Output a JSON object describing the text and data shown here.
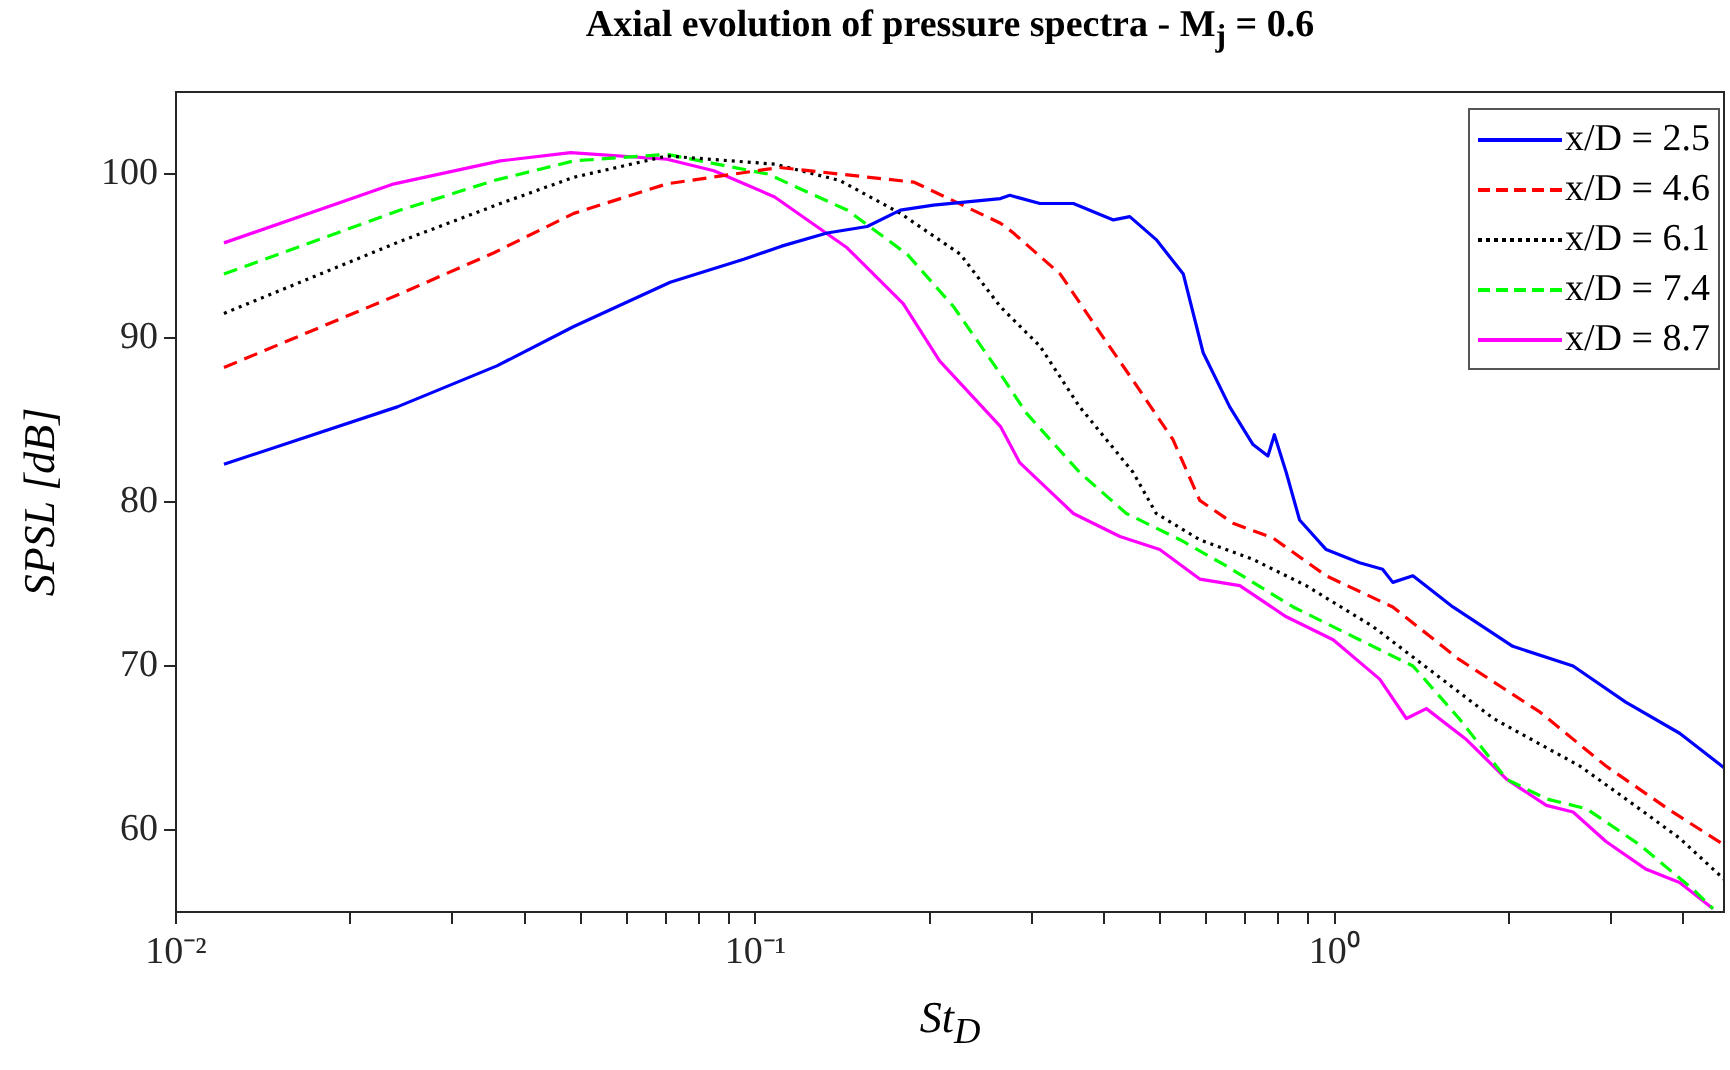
{
  "chart_data": {
    "type": "line",
    "title": "Axial evolution of pressure spectra - M$_{j}$ = 0.6",
    "xlabel": "St$_{D}$",
    "ylabel": "SPSL [dB]",
    "log": "x",
    "grid": false,
    "legend": "top right",
    "marker": "none",
    "xlim": [
      0.01,
      4.7
    ],
    "xticks": [
      {
        "value": 0.01,
        "label": "10⁻²"
      },
      {
        "value": 0.02,
        "label": null
      },
      {
        "value": 0.03,
        "label": null
      },
      {
        "value": 0.04,
        "label": null
      },
      {
        "value": 0.05,
        "label": null
      },
      {
        "value": 0.06,
        "label": null
      },
      {
        "value": 0.07,
        "label": null
      },
      {
        "value": 0.08,
        "label": null
      },
      {
        "value": 0.09,
        "label": null
      },
      {
        "value": 0.1,
        "label": "10⁻¹"
      },
      {
        "value": 0.2,
        "label": null
      },
      {
        "value": 0.3,
        "label": null
      },
      {
        "value": 0.4,
        "label": null
      },
      {
        "value": 0.5,
        "label": null
      },
      {
        "value": 0.6,
        "label": null
      },
      {
        "value": 0.7,
        "label": null
      },
      {
        "value": 0.8,
        "label": null
      },
      {
        "value": 0.9,
        "label": null
      },
      {
        "value": 1,
        "label": "10⁰"
      },
      {
        "value": 2,
        "label": null
      },
      {
        "value": 3,
        "label": null
      },
      {
        "value": 4,
        "label": null
      }
    ],
    "ylim": [
      55,
      105
    ],
    "yticks": [
      60,
      70,
      80,
      90,
      100
    ],
    "series": [
      {
        "name": "x/D = 2.5",
        "color": "#0000ff",
        "line_style": "solid",
        "x": [
          0.0121,
          0.0241,
          0.0358,
          0.0486,
          0.0713,
          0.0955,
          0.111,
          0.133,
          0.156,
          0.178,
          0.203,
          0.265,
          0.275,
          0.31,
          0.354,
          0.415,
          0.443,
          0.492,
          0.548,
          0.593,
          0.659,
          0.723,
          0.767,
          0.787,
          0.825,
          0.87,
          0.967,
          1.104,
          1.21,
          1.26,
          1.365,
          1.6,
          2.03,
          2.58,
          3.18,
          3.94,
          4.7
        ],
        "values": [
          82.3,
          85.8,
          88.3,
          90.7,
          93.4,
          94.8,
          95.6,
          96.4,
          96.8,
          97.8,
          98.1,
          98.5,
          98.7,
          98.2,
          98.2,
          97.2,
          97.4,
          96.0,
          93.9,
          89.1,
          85.8,
          83.5,
          82.8,
          84.1,
          81.8,
          78.9,
          77.1,
          76.3,
          75.9,
          75.1,
          75.5,
          73.6,
          71.2,
          70.0,
          67.8,
          65.9,
          63.8
        ]
      },
      {
        "name": "x/D = 4.6",
        "color": "#ff0000",
        "line_style": "dashed",
        "x": [
          0.0121,
          0.0244,
          0.0354,
          0.0486,
          0.0704,
          0.11,
          0.188,
          0.265,
          0.279,
          0.336,
          0.394,
          0.449,
          0.526,
          0.585,
          0.668,
          0.783,
          0.967,
          1.26,
          1.64,
          2.26,
          2.94,
          3.83,
          4.7
        ],
        "values": [
          88.2,
          92.7,
          95.2,
          97.6,
          99.4,
          100.4,
          99.5,
          97.0,
          96.4,
          93.9,
          90.3,
          87.4,
          83.8,
          80.1,
          78.7,
          77.8,
          75.5,
          73.6,
          70.4,
          67.2,
          63.9,
          61.1,
          59.1
        ]
      },
      {
        "name": "x/D = 6.1",
        "color": "#000000",
        "line_style": "dotted",
        "x": [
          0.0121,
          0.0244,
          0.0363,
          0.0486,
          0.0704,
          0.108,
          0.14,
          0.178,
          0.226,
          0.265,
          0.31,
          0.363,
          0.449,
          0.492,
          0.585,
          0.723,
          0.893,
          1.165,
          1.48,
          1.88,
          2.14,
          2.65,
          3.18,
          3.94,
          4.7
        ],
        "values": [
          91.5,
          95.9,
          98.2,
          99.8,
          101.1,
          100.6,
          99.6,
          97.6,
          95.1,
          91.9,
          89.5,
          85.8,
          81.8,
          79.3,
          77.7,
          76.5,
          74.9,
          72.4,
          69.6,
          66.8,
          65.7,
          63.9,
          61.9,
          59.5,
          57.0
        ]
      },
      {
        "name": "x/D = 7.4",
        "color": "#00ff00",
        "line_style": "dashed",
        "x": [
          0.0121,
          0.0244,
          0.0354,
          0.0486,
          0.0704,
          0.105,
          0.144,
          0.183,
          0.22,
          0.265,
          0.294,
          0.363,
          0.437,
          0.541,
          0.65,
          0.848,
          1.104,
          1.365,
          1.64,
          1.98,
          2.32,
          2.72,
          3.36,
          4.15,
          4.5
        ],
        "values": [
          93.9,
          97.8,
          99.6,
          100.8,
          101.2,
          100.0,
          97.8,
          95.1,
          91.9,
          87.8,
          85.4,
          81.8,
          79.3,
          77.7,
          76.1,
          73.6,
          71.6,
          70.0,
          66.8,
          63.1,
          61.9,
          61.3,
          59.1,
          56.4,
          55.2
        ]
      },
      {
        "name": "x/D = 8.7",
        "color": "#ff00ff",
        "line_style": "solid",
        "x": [
          0.0121,
          0.0238,
          0.0363,
          0.048,
          0.0704,
          0.0848,
          0.108,
          0.144,
          0.18,
          0.208,
          0.265,
          0.286,
          0.354,
          0.426,
          0.499,
          0.585,
          0.686,
          0.825,
          0.994,
          1.196,
          1.33,
          1.44,
          1.69,
          1.98,
          2.32,
          2.58,
          2.94,
          3.45,
          3.94,
          4.5
        ],
        "values": [
          95.8,
          99.4,
          100.8,
          101.3,
          100.9,
          100.2,
          98.6,
          95.5,
          92.1,
          88.6,
          84.6,
          82.4,
          79.3,
          77.9,
          77.1,
          75.3,
          74.9,
          73.0,
          71.6,
          69.2,
          66.8,
          67.4,
          65.5,
          63.1,
          61.5,
          61.1,
          59.3,
          57.6,
          56.8,
          55.2
        ]
      }
    ]
  }
}
